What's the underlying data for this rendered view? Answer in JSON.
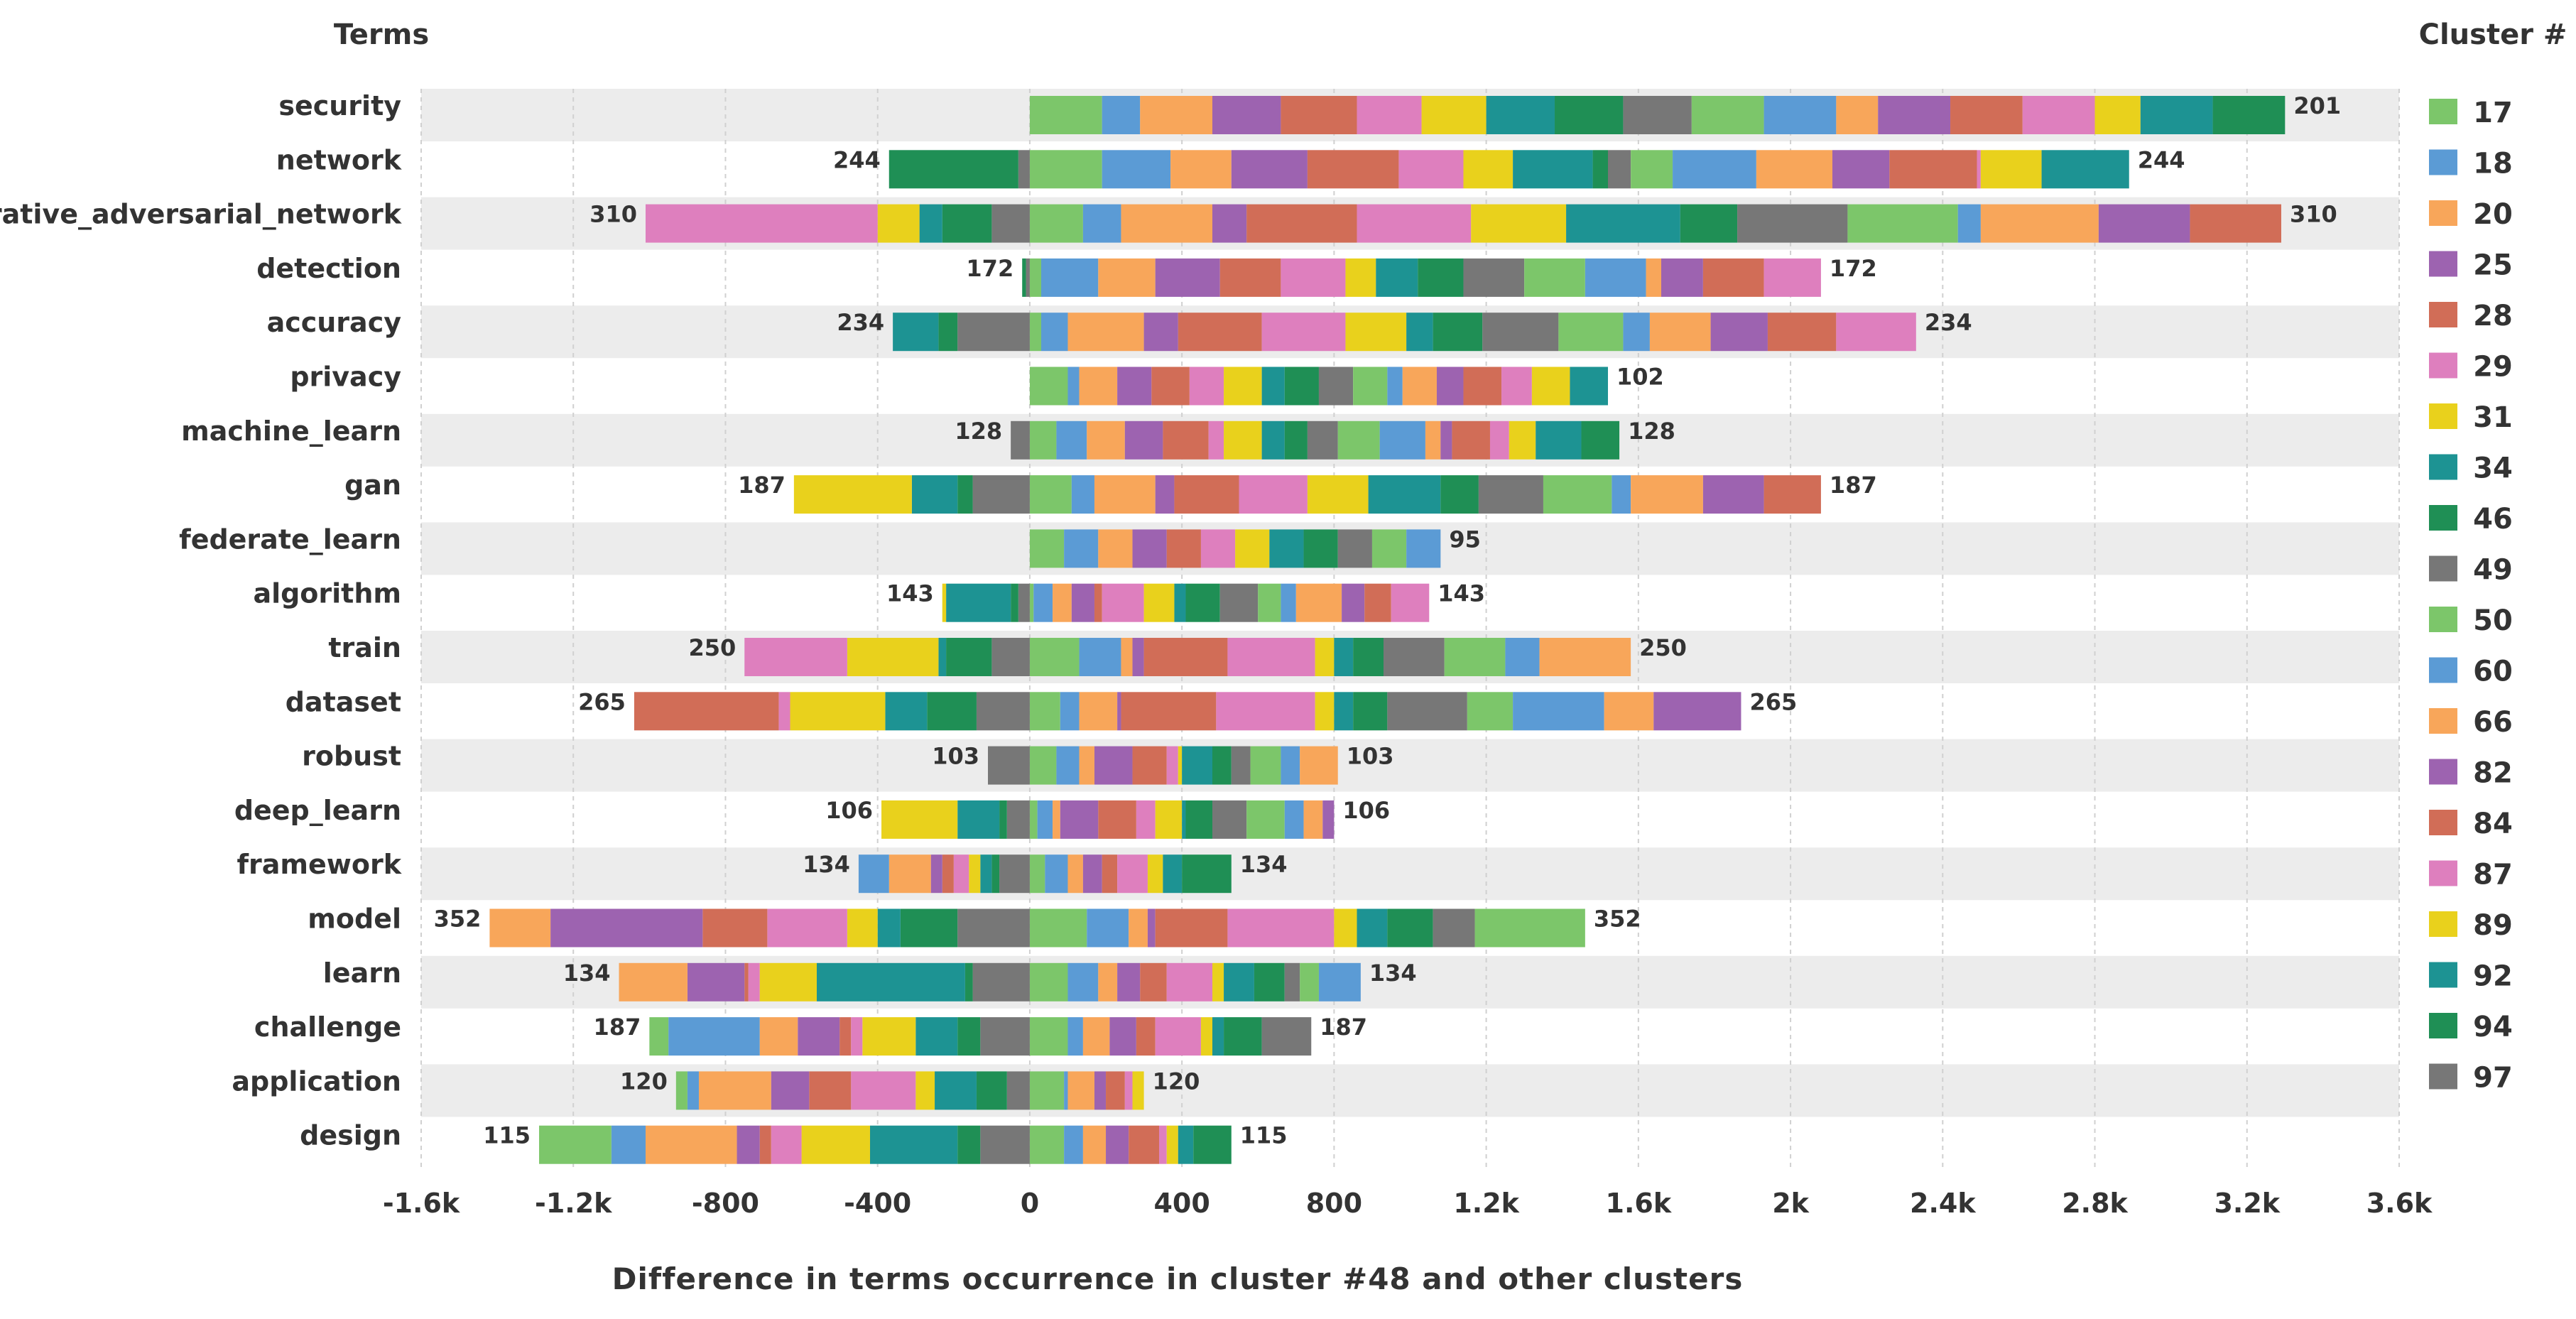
{
  "chart_data": {
    "type": "bar",
    "orientation": "horizontal",
    "stacked": true,
    "diverging": true,
    "title": "",
    "terms_header": "Terms",
    "legend_title": "Cluster #",
    "xlabel": "Difference in terms occurrence in cluster #48 and other clusters",
    "xlim": [
      -1600,
      3600
    ],
    "xticks": [
      -1600,
      -1200,
      -800,
      -400,
      0,
      400,
      800,
      1200,
      1600,
      2000,
      2400,
      2800,
      3200,
      3600
    ],
    "xtick_labels": [
      "-1.6k",
      "-1.2k",
      "-800",
      "-400",
      "0",
      "400",
      "800",
      "1.2k",
      "1.6k",
      "2k",
      "2.4k",
      "2.8k",
      "3.2k",
      "3.6k"
    ],
    "grid": "vertical-dashed",
    "clusters": [
      "17",
      "18",
      "20",
      "25",
      "28",
      "29",
      "31",
      "34",
      "46",
      "49",
      "50",
      "60",
      "66",
      "82",
      "84",
      "87",
      "89",
      "92",
      "94",
      "97"
    ],
    "colors": [
      "#7cc66a",
      "#5b9bd5",
      "#f8a65a",
      "#9d63b0",
      "#d16d57",
      "#de7fbe",
      "#e9d11c",
      "#1d9393",
      "#1f8f55",
      "#777777",
      "#7cc66a",
      "#5b9bd5",
      "#f8a65a",
      "#9d63b0",
      "#d16d57",
      "#de7fbe",
      "#e9d11c",
      "#1d9393",
      "#1f8f55",
      "#777777"
    ],
    "rows": [
      {
        "term": "security",
        "label_left": "",
        "label_right": "201",
        "neg": [],
        "pos": [
          190,
          100,
          190,
          180,
          200,
          170,
          170,
          180,
          180,
          180,
          190,
          190,
          110,
          190,
          190,
          190,
          120,
          190,
          190
        ]
      },
      {
        "term": "network",
        "label_left": "244",
        "label_right": "244",
        "neg": [
          30,
          340
        ],
        "pos": [
          190,
          180,
          160,
          200,
          240,
          170,
          130,
          210,
          40,
          60,
          110,
          220,
          200,
          150,
          230,
          10,
          160,
          230
        ]
      },
      {
        "term": "generative_adversarial_network",
        "label_left": "310",
        "label_right": "310",
        "neg": [
          100,
          130,
          60,
          110,
          610
        ],
        "pos": [
          140,
          100,
          240,
          90,
          290,
          300,
          250,
          300,
          150,
          290,
          290,
          60,
          310,
          240,
          240
        ]
      },
      {
        "term": "detection",
        "label_left": "172",
        "label_right": "172",
        "neg": [
          10,
          10
        ],
        "pos": [
          30,
          150,
          150,
          170,
          160,
          170,
          80,
          110,
          120,
          160,
          160,
          160,
          40,
          110,
          160,
          150
        ]
      },
      {
        "term": "accuracy",
        "label_left": "234",
        "label_right": "234",
        "neg": [
          190,
          50,
          120
        ],
        "pos": [
          30,
          70,
          200,
          90,
          220,
          220,
          160,
          70,
          130,
          200,
          170,
          70,
          160,
          150,
          180,
          210
        ]
      },
      {
        "term": "privacy",
        "label_left": "",
        "label_right": "102",
        "neg": [],
        "pos": [
          100,
          30,
          100,
          90,
          100,
          90,
          100,
          60,
          90,
          90,
          90,
          40,
          90,
          70,
          100,
          80,
          100,
          100
        ]
      },
      {
        "term": "machine_learn",
        "label_left": "128",
        "label_right": "128",
        "neg": [
          50
        ],
        "pos": [
          70,
          80,
          100,
          100,
          120,
          40,
          100,
          60,
          60,
          80,
          110,
          120,
          40,
          30,
          100,
          50,
          70,
          120,
          100
        ]
      },
      {
        "term": "gan",
        "label_left": "187",
        "label_right": "187",
        "neg": [
          150,
          40,
          120,
          310
        ],
        "pos": [
          110,
          60,
          160,
          50,
          170,
          180,
          160,
          190,
          100,
          170,
          180,
          50,
          190,
          160,
          150
        ]
      },
      {
        "term": "federate_learn",
        "label_left": "",
        "label_right": "95",
        "neg": [],
        "pos": [
          90,
          90,
          90,
          90,
          90,
          90,
          90,
          90,
          90,
          90,
          90,
          90
        ]
      },
      {
        "term": "algorithm",
        "label_left": "143",
        "label_right": "143",
        "neg": [
          30,
          20,
          170,
          10
        ],
        "pos": [
          10,
          50,
          50,
          60,
          20,
          110,
          80,
          30,
          90,
          100,
          60,
          40,
          120,
          60,
          70,
          100
        ]
      },
      {
        "term": "train",
        "label_left": "250",
        "label_right": "250",
        "neg": [
          100,
          120,
          20,
          240,
          270
        ],
        "pos": [
          130,
          110,
          30,
          30,
          220,
          230,
          50,
          50,
          80,
          160,
          160,
          90,
          240
        ]
      },
      {
        "term": "dataset",
        "label_left": "265",
        "label_right": "265",
        "neg": [
          140,
          130,
          110,
          250,
          30,
          380
        ],
        "pos": [
          80,
          50,
          100,
          10,
          250,
          260,
          50,
          50,
          90,
          210,
          120,
          240,
          130,
          230
        ]
      },
      {
        "term": "robust",
        "label_left": "103",
        "label_right": "103",
        "neg": [
          110
        ],
        "pos": [
          70,
          60,
          40,
          100,
          90,
          30,
          10,
          80,
          50,
          50,
          80,
          50,
          100
        ]
      },
      {
        "term": "deep_learn",
        "label_left": "106",
        "label_right": "106",
        "neg": [
          60,
          20,
          110,
          200
        ],
        "pos": [
          20,
          40,
          20,
          100,
          100,
          50,
          70,
          10,
          70,
          90,
          100,
          50,
          50,
          30
        ]
      },
      {
        "term": "framework",
        "label_left": "134",
        "label_right": "134",
        "neg": [
          80,
          20,
          30,
          30,
          40,
          30,
          30,
          110,
          80
        ],
        "pos": [
          40,
          60,
          40,
          50,
          40,
          80,
          40,
          50,
          130
        ]
      },
      {
        "term": "model",
        "label_left": "352",
        "label_right": "352",
        "neg": [
          190,
          150,
          60,
          80,
          210,
          170,
          400,
          160
        ],
        "pos": [
          150,
          110,
          50,
          20,
          190,
          280,
          60,
          80,
          120,
          110,
          290
        ]
      },
      {
        "term": "learn",
        "label_left": "134",
        "label_right": "134",
        "neg": [
          150,
          20,
          390,
          150,
          30,
          10,
          150,
          180
        ],
        "pos": [
          100,
          80,
          50,
          60,
          70,
          120,
          30,
          80,
          80,
          40,
          50,
          110
        ]
      },
      {
        "term": "challenge",
        "label_left": "187",
        "label_right": "187",
        "neg": [
          130,
          60,
          110,
          140,
          30,
          30,
          110,
          100,
          240,
          50
        ],
        "pos": [
          100,
          40,
          70,
          70,
          50,
          120,
          30,
          30,
          100,
          130
        ]
      },
      {
        "term": "application",
        "label_left": "120",
        "label_right": "120",
        "neg": [
          60,
          80,
          110,
          50,
          170,
          110,
          100,
          190,
          30,
          30
        ],
        "pos": [
          90,
          10,
          70,
          30,
          50,
          20,
          30
        ]
      },
      {
        "term": "design",
        "label_left": "115",
        "label_right": "115",
        "neg": [
          130,
          60,
          230,
          180,
          80,
          30,
          60,
          240,
          90,
          190
        ],
        "pos": [
          90,
          50,
          60,
          60,
          80,
          20,
          30,
          40,
          100
        ]
      }
    ]
  }
}
